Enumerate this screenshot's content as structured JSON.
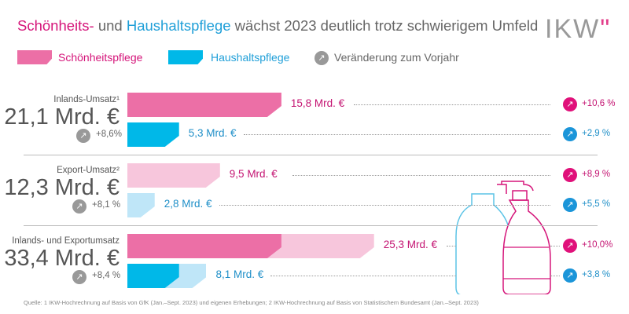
{
  "header": {
    "title_part1": "Schönheits-",
    "title_part2": " und ",
    "title_part3": "Haushaltspflege",
    "title_part4": " wächst 2023 deutlich trotz schwierigem Umfeld",
    "logo": "IKW"
  },
  "legend": {
    "items": [
      {
        "label": "Schönheitspflege",
        "color": "#ec6fa6"
      },
      {
        "label": "Haushaltspflege",
        "color": "#00b8e8"
      },
      {
        "label": "Veränderung zum Vorjahr",
        "color": "#999999"
      }
    ]
  },
  "colors": {
    "pink": "#ec6fa6",
    "pink_light": "#f7c6dc",
    "blue": "#00b8e8",
    "blue_light": "#bfe6f8",
    "pink_text": "#c41472",
    "blue_text": "#1f8fc8",
    "pink_circle": "#e0117a",
    "blue_circle": "#1b95d9",
    "grey_circle": "#999999"
  },
  "chart_data": {
    "type": "bar",
    "unit": "Mrd. €",
    "groups": [
      {
        "label": "Inlands-Umsatz¹",
        "total": "21,1 Mrd. €",
        "total_change": "+8,6%",
        "beauty": {
          "value": 15.8,
          "label": "15,8 Mrd. €",
          "change": "+10,6 %"
        },
        "household": {
          "value": 5.3,
          "label": "5,3 Mrd. €",
          "change": "+2,9 %"
        }
      },
      {
        "label": "Export-Umsatz²",
        "total": "12,3 Mrd. €",
        "total_change": "+8,1 %",
        "beauty": {
          "value": 9.5,
          "label": "9,5 Mrd. €",
          "change": "+8,9 %"
        },
        "household": {
          "value": 2.8,
          "label": "2,8 Mrd. €",
          "change": "+5,5 %"
        }
      },
      {
        "label": "Inlands- und Exportumsatz",
        "total": "33,4 Mrd. €",
        "total_change": "+8,4 %",
        "beauty": {
          "value": 25.3,
          "domestic": 15.8,
          "label": "25,3 Mrd. €",
          "change": "+10,0%"
        },
        "household": {
          "value": 8.1,
          "domestic": 5.3,
          "label": "8,1 Mrd. €",
          "change": "+3,8 %"
        }
      }
    ]
  },
  "footer": {
    "source": "Quelle: 1 IKW-Hochrechnung auf Basis von GfK (Jan.–Sept. 2023) und eigenen Erhebungen; 2 IKW-Hochrechnung auf Basis von Statistischem Bundesamt (Jan.–Sept. 2023)"
  }
}
